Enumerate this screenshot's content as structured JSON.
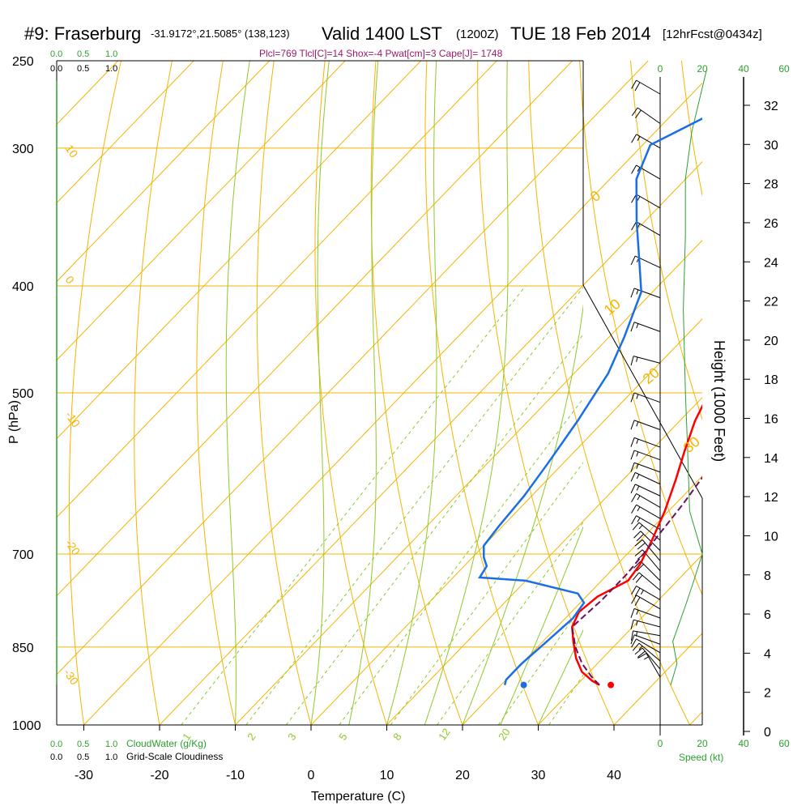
{
  "header": {
    "station": "#9: Fraserburg",
    "coords": "-31.9172°,21.5085° (138,123)",
    "valid": "Valid 1400 LST",
    "zulu": "(1200Z)",
    "date": "TUE 18 Feb 2014",
    "forecast": "[12hrFcst@0434z]"
  },
  "indices_line": "Plcl=769 Tlcl[C]=14 Shox=-4 Pwat[cm]=3 Cape[J]= 1748",
  "chart_data": {
    "type": "line",
    "title": "#9: Fraserburg",
    "xlabel": "Temperature (C)",
    "ylabel": "P (hPa)",
    "y2label": "Height (1000 Feet)",
    "xticks": [
      "-30",
      "-20",
      "-10",
      "0",
      "10",
      "20",
      "30",
      "40"
    ],
    "xlim": [
      -35,
      45
    ],
    "ylim": [
      1000,
      250
    ],
    "pressure_levels": [
      "250",
      "300",
      "400",
      "500",
      "700",
      "850",
      "1000"
    ],
    "height_ticks": [
      "32",
      "30",
      "28",
      "26",
      "24",
      "22",
      "20",
      "18",
      "16",
      "14",
      "12",
      "10",
      "8",
      "6",
      "4",
      "2",
      "0"
    ],
    "series": [
      {
        "kind": "temperature",
        "color": "#ff0000",
        "points": [
          [
            33.0,
            920
          ],
          [
            31.5,
            912
          ],
          [
            29.0,
            895
          ],
          [
            26.5,
            870
          ],
          [
            24.0,
            840
          ],
          [
            22.0,
            815
          ],
          [
            21.0,
            790
          ],
          [
            21.5,
            765
          ],
          [
            23.5,
            740
          ],
          [
            23.0,
            715
          ],
          [
            21.5,
            680
          ],
          [
            19.5,
            640
          ],
          [
            17.0,
            600
          ],
          [
            14.5,
            565
          ],
          [
            12.0,
            530
          ],
          [
            10.0,
            495
          ],
          [
            8.5,
            460
          ],
          [
            7.0,
            420
          ],
          [
            5.5,
            380
          ],
          [
            4.5,
            340
          ],
          [
            4.0,
            300
          ],
          [
            3.5,
            265
          ]
        ]
      },
      {
        "kind": "dewpoint",
        "color": "#1a6ee6",
        "points": [
          [
            20.5,
            920
          ],
          [
            20.0,
            910
          ],
          [
            20.0,
            880
          ],
          [
            20.5,
            840
          ],
          [
            21.0,
            800
          ],
          [
            20.5,
            775
          ],
          [
            18.5,
            760
          ],
          [
            10.0,
            740
          ],
          [
            3.5,
            735
          ],
          [
            3.0,
            718
          ],
          [
            1.5,
            705
          ],
          [
            0.0,
            688
          ],
          [
            -0.5,
            660
          ],
          [
            -1.0,
            620
          ],
          [
            -2.0,
            580
          ],
          [
            -3.5,
            530
          ],
          [
            -5.5,
            480
          ],
          [
            -8.0,
            445
          ],
          [
            -11.5,
            405
          ],
          [
            -16.5,
            375
          ],
          [
            -21.0,
            350
          ],
          [
            -26.5,
            320
          ],
          [
            -29.0,
            298
          ],
          [
            -25.0,
            280
          ],
          [
            -22.0,
            262
          ]
        ]
      },
      {
        "kind": "parcel",
        "color": "#6b1060",
        "points": [
          [
            33.0,
            920
          ],
          [
            31.0,
            905
          ],
          [
            28.0,
            880
          ],
          [
            25.0,
            850
          ],
          [
            22.0,
            815
          ],
          [
            22.5,
            770
          ],
          [
            22.5,
            730
          ],
          [
            22.0,
            690
          ],
          [
            21.0,
            630
          ],
          [
            19.5,
            570
          ],
          [
            17.0,
            510
          ],
          [
            14.5,
            460
          ],
          [
            12.0,
            410
          ],
          [
            9.0,
            360
          ],
          [
            6.5,
            310
          ],
          [
            5.0,
            265
          ]
        ]
      }
    ],
    "surface_markers": [
      {
        "kind": "temperature",
        "value": 34.5,
        "pressure": 920,
        "color": "#ff0000"
      },
      {
        "kind": "dewpoint",
        "value": 23.0,
        "pressure": 920,
        "color": "#1a6ee6"
      }
    ],
    "isotherm_labels": [
      "10",
      "0",
      "-10",
      "-20",
      "-30"
    ],
    "dry_adiabat_labels": [
      "0",
      "10",
      "20",
      "30"
    ],
    "mixing_ratio_labels": [
      "1",
      "2",
      "3",
      "5",
      "8",
      "12",
      "20"
    ],
    "cloud_water_scale": {
      "label": "CloudWater (g/Kg)",
      "ticks": [
        "0.0",
        "0.5",
        "1.0"
      ]
    },
    "cloudiness_scale": {
      "label": "Grid-Scale Cloudiness",
      "ticks": [
        "0.0",
        "0.5",
        "1.0"
      ]
    },
    "wind_speed_axis": {
      "label": "Speed (kt)",
      "ticks": [
        "0",
        "20",
        "40",
        "60"
      ]
    },
    "wind_speed_profile": [
      [
        5,
        920
      ],
      [
        8,
        880
      ],
      [
        6,
        840
      ],
      [
        12,
        780
      ],
      [
        16,
        740
      ],
      [
        20,
        700
      ],
      [
        14,
        640
      ],
      [
        13,
        560
      ],
      [
        12,
        500
      ],
      [
        11,
        420
      ],
      [
        12,
        360
      ],
      [
        12,
        320
      ],
      [
        15,
        290
      ],
      [
        22,
        255
      ]
    ],
    "wind_barbs": [
      {
        "p": 905,
        "spd": 15,
        "dir": 330
      },
      {
        "p": 890,
        "spd": 20,
        "dir": 320
      },
      {
        "p": 875,
        "spd": 15,
        "dir": 310
      },
      {
        "p": 860,
        "spd": 10,
        "dir": 300
      },
      {
        "p": 845,
        "spd": 10,
        "dir": 290
      },
      {
        "p": 830,
        "spd": 15,
        "dir": 280
      },
      {
        "p": 815,
        "spd": 15,
        "dir": 285
      },
      {
        "p": 800,
        "spd": 15,
        "dir": 290
      },
      {
        "p": 785,
        "spd": 20,
        "dir": 300
      },
      {
        "p": 770,
        "spd": 25,
        "dir": 300
      },
      {
        "p": 755,
        "spd": 20,
        "dir": 310
      },
      {
        "p": 740,
        "spd": 20,
        "dir": 315
      },
      {
        "p": 725,
        "spd": 20,
        "dir": 320
      },
      {
        "p": 710,
        "spd": 20,
        "dir": 320
      },
      {
        "p": 695,
        "spd": 20,
        "dir": 315
      },
      {
        "p": 680,
        "spd": 15,
        "dir": 310
      },
      {
        "p": 665,
        "spd": 15,
        "dir": 300
      },
      {
        "p": 650,
        "spd": 15,
        "dir": 300
      },
      {
        "p": 635,
        "spd": 15,
        "dir": 300
      },
      {
        "p": 620,
        "spd": 15,
        "dir": 295
      },
      {
        "p": 605,
        "spd": 15,
        "dir": 295
      },
      {
        "p": 590,
        "spd": 15,
        "dir": 290
      },
      {
        "p": 575,
        "spd": 15,
        "dir": 290
      },
      {
        "p": 560,
        "spd": 15,
        "dir": 290
      },
      {
        "p": 540,
        "spd": 15,
        "dir": 290
      },
      {
        "p": 510,
        "spd": 15,
        "dir": 290
      },
      {
        "p": 470,
        "spd": 15,
        "dir": 285
      },
      {
        "p": 440,
        "spd": 15,
        "dir": 290
      },
      {
        "p": 410,
        "spd": 15,
        "dir": 290
      },
      {
        "p": 385,
        "spd": 15,
        "dir": 295
      },
      {
        "p": 360,
        "spd": 15,
        "dir": 300
      },
      {
        "p": 340,
        "spd": 15,
        "dir": 300
      },
      {
        "p": 320,
        "spd": 15,
        "dir": 300
      },
      {
        "p": 300,
        "spd": 15,
        "dir": 300
      },
      {
        "p": 285,
        "spd": 20,
        "dir": 305
      },
      {
        "p": 268,
        "spd": 20,
        "dir": 300
      }
    ]
  }
}
